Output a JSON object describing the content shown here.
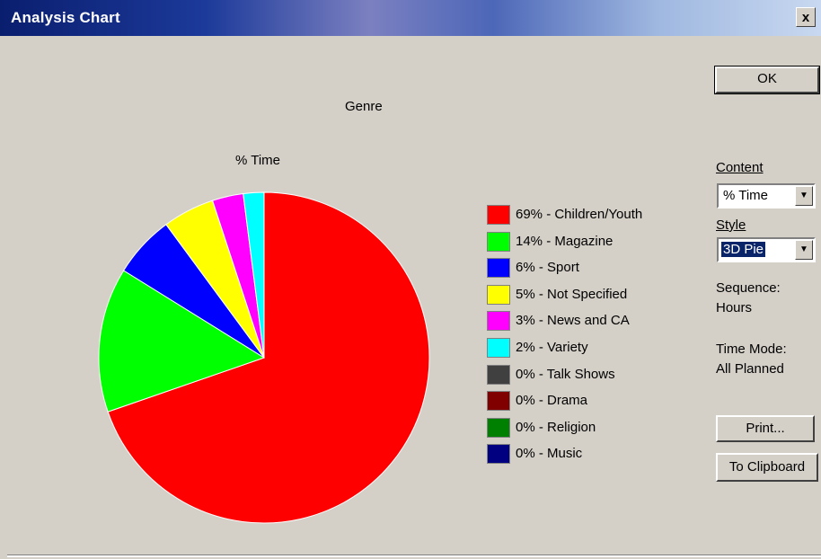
{
  "window": {
    "title": "Analysis Chart",
    "close_label": "x"
  },
  "chart_data": {
    "type": "pie",
    "title": "Genre",
    "subtitle": "% Time",
    "categories": [
      "Children/Youth",
      "Magazine",
      "Sport",
      "Not Specified",
      "News and CA",
      "Variety",
      "Talk Shows",
      "Drama",
      "Religion",
      "Music"
    ],
    "values": [
      69,
      14,
      6,
      5,
      3,
      2,
      0,
      0,
      0,
      0
    ],
    "colors": [
      "#ff0000",
      "#00ff00",
      "#0000ff",
      "#ffff00",
      "#ff00ff",
      "#00ffff",
      "#404040",
      "#800000",
      "#008000",
      "#000080"
    ],
    "start_angle": "12 o'clock",
    "direction": "clockwise",
    "legend_placement": "right"
  },
  "legend": {
    "items": [
      "69% - Children/Youth",
      "14% - Magazine",
      "6% - Sport",
      "5% - Not Specified",
      "3% - News and CA",
      "2% - Variety",
      "0% - Talk Shows",
      "0% - Drama",
      "0% - Religion",
      "0% - Music"
    ]
  },
  "controls": {
    "ok_label": "OK",
    "content_label": "Content",
    "content_value": "% Time",
    "style_label": "Style",
    "style_value": "3D Pie",
    "sequence_label": "Sequence:",
    "sequence_value": "Hours",
    "time_mode_label": "Time Mode:",
    "time_mode_value": "All Planned",
    "print_label": "Print...",
    "clipboard_label": "To Clipboard"
  }
}
